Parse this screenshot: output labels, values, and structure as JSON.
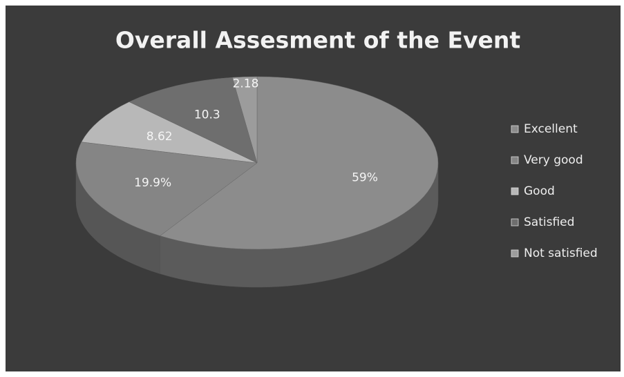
{
  "chart_data": {
    "type": "pie",
    "title": "Overall Assesment of the Event",
    "categories": [
      "Excellent",
      "Very good",
      "Good",
      "Satisfied",
      "Not satisfied"
    ],
    "values": [
      59,
      19.9,
      8.62,
      10.3,
      2.18
    ],
    "value_labels": [
      "59%",
      "19.9%",
      "8.62",
      "10.3",
      "2.18"
    ],
    "colors": [
      "#8c8c8c",
      "#858585",
      "#b8b8b8",
      "#6e6e6e",
      "#9c9c9c"
    ],
    "legend": "right"
  }
}
